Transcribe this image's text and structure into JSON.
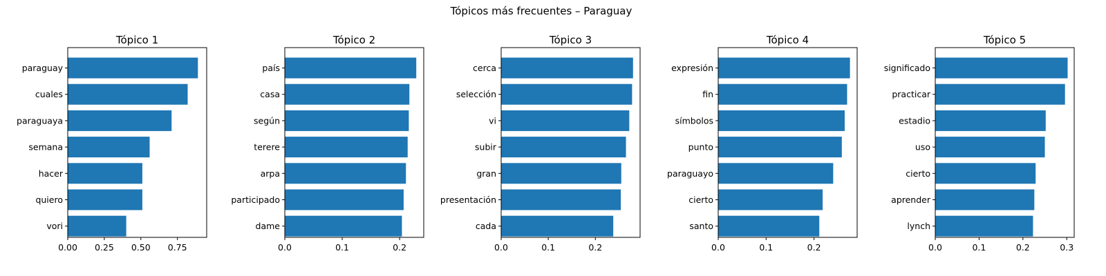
{
  "figure": {
    "title": "Tópicos más frecuentes – Paraguay"
  },
  "chart_data": [
    {
      "type": "bar",
      "orientation": "horizontal",
      "title": "Tópico 1",
      "color": "#1f77b4",
      "categories": [
        "paraguay",
        "cuales",
        "paraguaya",
        "semana",
        "hacer",
        "quiero",
        "vori"
      ],
      "values": [
        0.89,
        0.82,
        0.71,
        0.56,
        0.51,
        0.51,
        0.4
      ],
      "xlim": [
        0,
        0.95
      ],
      "xticks": [
        0.0,
        0.25,
        0.5,
        0.75
      ],
      "xtick_labels": [
        "0.00",
        "0.25",
        "0.50",
        "0.75"
      ]
    },
    {
      "type": "bar",
      "orientation": "horizontal",
      "title": "Tópico 2",
      "color": "#1f77b4",
      "categories": [
        "país",
        "casa",
        "según",
        "terere",
        "arpa",
        "participado",
        "dame"
      ],
      "values": [
        0.229,
        0.217,
        0.216,
        0.214,
        0.211,
        0.207,
        0.204
      ],
      "xlim": [
        0,
        0.242
      ],
      "xticks": [
        0.0,
        0.1,
        0.2
      ],
      "xtick_labels": [
        "0.0",
        "0.1",
        "0.2"
      ]
    },
    {
      "type": "bar",
      "orientation": "horizontal",
      "title": "Tópico 3",
      "color": "#1f77b4",
      "categories": [
        "cerca",
        "selección",
        "vi",
        "subir",
        "gran",
        "presentación",
        "cada"
      ],
      "values": [
        0.28,
        0.278,
        0.272,
        0.265,
        0.255,
        0.254,
        0.238
      ],
      "xlim": [
        0,
        0.295
      ],
      "xticks": [
        0.0,
        0.1,
        0.2
      ],
      "xtick_labels": [
        "0.0",
        "0.1",
        "0.2"
      ]
    },
    {
      "type": "bar",
      "orientation": "horizontal",
      "title": "Tópico 4",
      "color": "#1f77b4",
      "categories": [
        "expresión",
        "fin",
        "símbolos",
        "punto",
        "paraguayo",
        "cierto",
        "santo"
      ],
      "values": [
        0.275,
        0.269,
        0.264,
        0.258,
        0.24,
        0.218,
        0.211
      ],
      "xlim": [
        0,
        0.29
      ],
      "xticks": [
        0.0,
        0.1,
        0.2
      ],
      "xtick_labels": [
        "0.0",
        "0.1",
        "0.2"
      ]
    },
    {
      "type": "bar",
      "orientation": "horizontal",
      "title": "Tópico 5",
      "color": "#1f77b4",
      "categories": [
        "significado",
        "practicar",
        "estadio",
        "uso",
        "cierto",
        "aprender",
        "lynch"
      ],
      "values": [
        0.302,
        0.296,
        0.252,
        0.25,
        0.229,
        0.226,
        0.223
      ],
      "xlim": [
        0,
        0.317
      ],
      "xticks": [
        0.0,
        0.1,
        0.2,
        0.3
      ],
      "xtick_labels": [
        "0.0",
        "0.1",
        "0.2",
        "0.3"
      ]
    }
  ]
}
